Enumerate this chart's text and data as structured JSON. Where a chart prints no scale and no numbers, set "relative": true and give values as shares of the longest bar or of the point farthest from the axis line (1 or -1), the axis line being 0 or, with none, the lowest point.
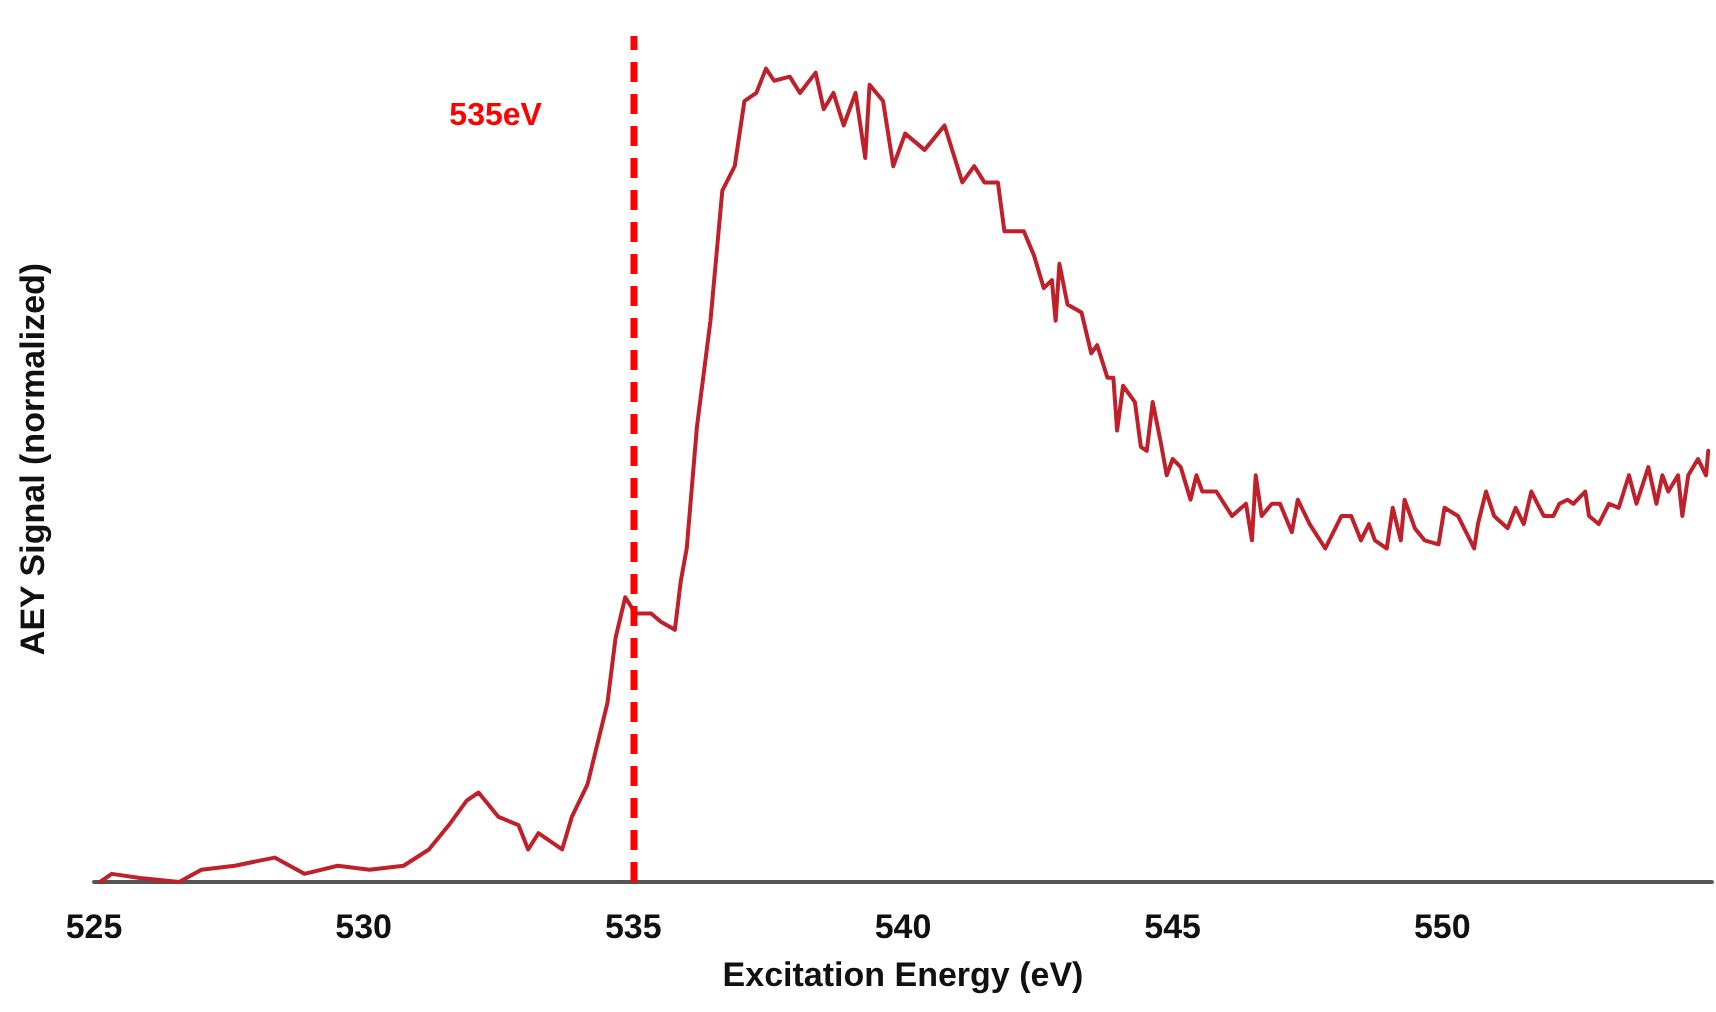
{
  "chart_data": {
    "type": "line",
    "xlabel": "Excitation Energy (eV)",
    "ylabel": "AEY Signal (normalized)",
    "relative": true,
    "xlim": [
      525,
      555
    ],
    "xticks": [
      525,
      530,
      535,
      540,
      545,
      550
    ],
    "marker": "none",
    "line_style": "solid",
    "ref_lines": [
      {
        "axis": "x",
        "value": 535,
        "label": "535eV",
        "color": "#ff0000",
        "line_style": "dashed"
      }
    ],
    "series": [
      {
        "color": "#c0202a",
        "x": [
          525.11,
          525.33,
          525.85,
          526.58,
          526.99,
          527.61,
          528.35,
          528.9,
          529.52,
          530.11,
          530.74,
          531.21,
          531.58,
          531.91,
          532.13,
          532.5,
          532.87,
          533.05,
          533.24,
          533.68,
          533.86,
          534.15,
          534.52,
          534.67,
          534.85,
          535.04,
          535.33,
          535.51,
          535.77,
          535.88,
          535.99,
          536.18,
          536.43,
          536.65,
          536.88,
          537.06,
          537.28,
          537.46,
          537.61,
          537.9,
          538.09,
          538.38,
          538.53,
          538.71,
          538.9,
          539.12,
          539.3,
          539.38,
          539.63,
          539.82,
          540.04,
          540.4,
          540.77,
          541.1,
          541.32,
          541.51,
          541.76,
          541.88,
          542.24,
          542.43,
          542.61,
          542.76,
          542.83,
          542.9,
          543.05,
          543.31,
          543.49,
          543.6,
          543.79,
          543.9,
          543.97,
          544.08,
          544.3,
          544.41,
          544.52,
          544.63,
          544.78,
          544.89,
          545.0,
          545.15,
          545.33,
          545.44,
          545.55,
          545.81,
          546.1,
          546.36,
          546.47,
          546.54,
          546.65,
          546.84,
          546.99,
          547.21,
          547.32,
          547.54,
          547.83,
          548.13,
          548.31,
          548.49,
          548.64,
          548.75,
          548.97,
          549.08,
          549.23,
          549.3,
          549.49,
          549.67,
          549.93,
          550.04,
          550.29,
          550.59,
          550.66,
          550.81,
          550.96,
          551.21,
          551.36,
          551.51,
          551.65,
          551.88,
          552.06,
          552.17,
          552.32,
          552.43,
          552.65,
          552.72,
          552.9,
          553.09,
          553.27,
          553.46,
          553.6,
          553.82,
          553.97,
          554.08,
          554.19,
          554.37,
          554.45,
          554.56,
          554.74,
          554.89,
          554.93
        ],
        "values": [
          0,
          0.01,
          0.005,
          0,
          0.015,
          0.02,
          0.03,
          0.01,
          0.02,
          0.015,
          0.02,
          0.04,
          0.07,
          0.1,
          0.11,
          0.08,
          0.07,
          0.04,
          0.06,
          0.04,
          0.08,
          0.12,
          0.22,
          0.3,
          0.35,
          0.33,
          0.33,
          0.32,
          0.31,
          0.37,
          0.41,
          0.56,
          0.69,
          0.85,
          0.88,
          0.96,
          0.97,
          1,
          0.985,
          0.99,
          0.97,
          0.995,
          0.95,
          0.97,
          0.93,
          0.97,
          0.89,
          0.98,
          0.96,
          0.88,
          0.92,
          0.9,
          0.93,
          0.86,
          0.88,
          0.86,
          0.86,
          0.8,
          0.8,
          0.77,
          0.73,
          0.74,
          0.69,
          0.76,
          0.71,
          0.7,
          0.65,
          0.66,
          0.62,
          0.62,
          0.555,
          0.61,
          0.59,
          0.535,
          0.53,
          0.59,
          0.54,
          0.5,
          0.52,
          0.51,
          0.47,
          0.5,
          0.48,
          0.48,
          0.45,
          0.465,
          0.42,
          0.5,
          0.45,
          0.465,
          0.465,
          0.43,
          0.47,
          0.44,
          0.41,
          0.45,
          0.45,
          0.42,
          0.44,
          0.42,
          0.41,
          0.46,
          0.42,
          0.47,
          0.435,
          0.42,
          0.415,
          0.46,
          0.45,
          0.41,
          0.44,
          0.48,
          0.45,
          0.435,
          0.46,
          0.44,
          0.48,
          0.45,
          0.45,
          0.465,
          0.47,
          0.465,
          0.48,
          0.45,
          0.44,
          0.465,
          0.46,
          0.5,
          0.465,
          0.51,
          0.465,
          0.5,
          0.48,
          0.5,
          0.45,
          0.5,
          0.52,
          0.5,
          0.53
        ]
      }
    ]
  }
}
